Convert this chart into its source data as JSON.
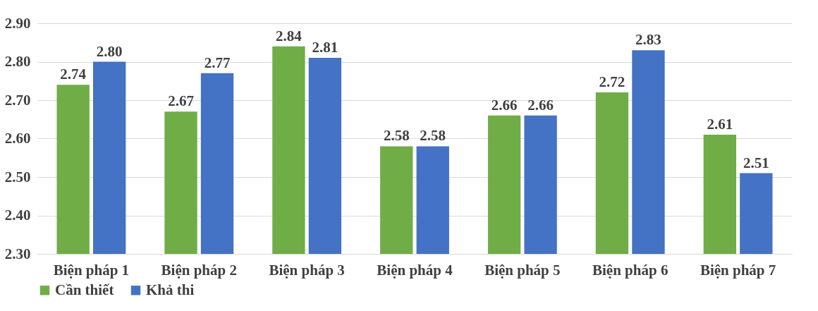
{
  "chart_data": {
    "type": "bar",
    "categories": [
      "Biện pháp 1",
      "Biện pháp 2",
      "Biện pháp 3",
      "Biện pháp 4",
      "Biện pháp 5",
      "Biện pháp 6",
      "Biện pháp 7"
    ],
    "series": [
      {
        "name": "Cần thiết",
        "color": "#70ad47",
        "values": [
          2.74,
          2.67,
          2.84,
          2.58,
          2.66,
          2.72,
          2.61
        ],
        "value_labels": [
          "2.74",
          "2.67",
          "2.84",
          "2.58",
          "2.66",
          "2.72",
          "2.61"
        ]
      },
      {
        "name": "Khả thi",
        "color": "#4472c4",
        "values": [
          2.8,
          2.77,
          2.81,
          2.58,
          2.66,
          2.83,
          2.51
        ],
        "value_labels": [
          "2.80",
          "2.77",
          "2.81",
          "2.58",
          "2.66",
          "2.83",
          "2.51"
        ]
      }
    ],
    "ylim": [
      2.3,
      2.9
    ],
    "yticks": [
      {
        "value": 2.3,
        "label": "2.30"
      },
      {
        "value": 2.4,
        "label": "2.40"
      },
      {
        "value": 2.5,
        "label": "2.50"
      },
      {
        "value": 2.6,
        "label": "2.60"
      },
      {
        "value": 2.7,
        "label": "2.70"
      },
      {
        "value": 2.8,
        "label": "2.80"
      },
      {
        "value": 2.9,
        "label": "2.90"
      }
    ],
    "grid": "y",
    "legend": "bottom"
  }
}
